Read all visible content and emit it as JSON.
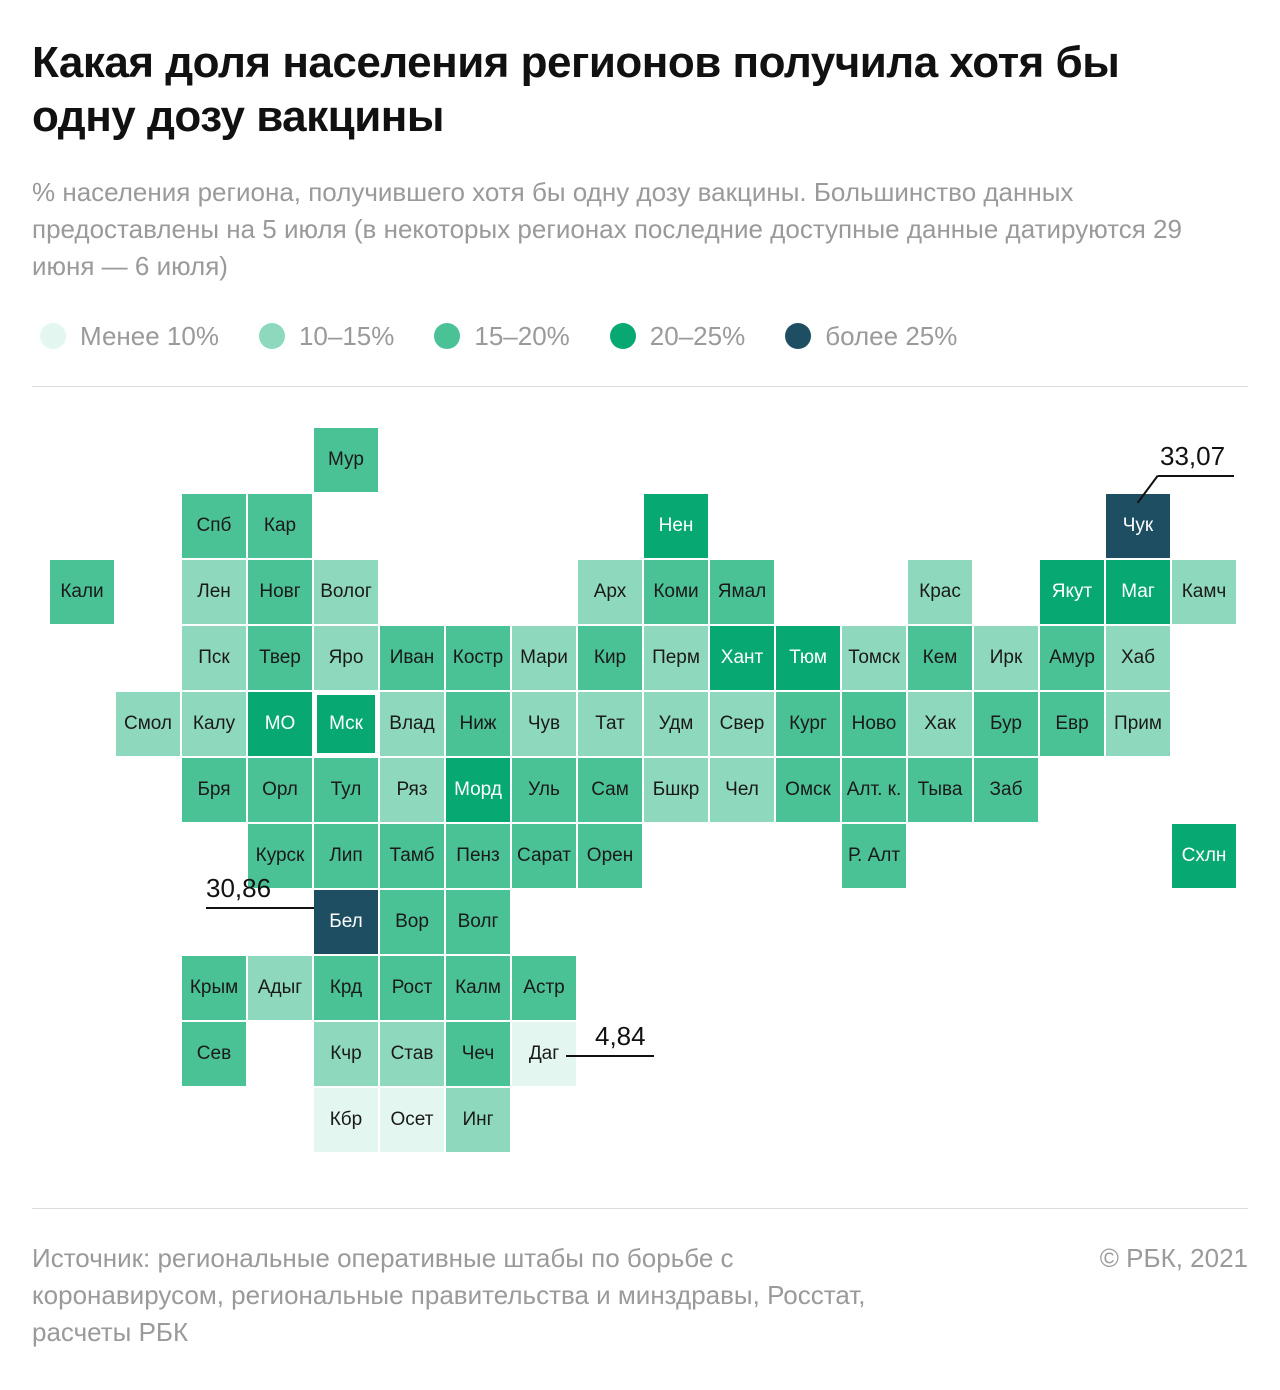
{
  "header": {
    "title": "Какая доля населения регионов получила хотя бы одну дозу вакцины",
    "subtitle": "% населения региона, получившего хотя бы одну дозу вакцины. Большинство данных предоставлены на 5 июля (в некоторых регионах последние доступные данные датируются 29 июня — 6 июля)"
  },
  "legend": [
    {
      "key": "lt10",
      "label": "Менее 10%",
      "color": "#e3f6ef"
    },
    {
      "key": "10_15",
      "label": "10–15%",
      "color": "#8ed8bd"
    },
    {
      "key": "15_20",
      "label": "15–20%",
      "color": "#4bc196"
    },
    {
      "key": "20_25",
      "label": "20–25%",
      "color": "#07a872"
    },
    {
      "key": "gt25",
      "label": "более 25%",
      "color": "#1d4e62"
    }
  ],
  "chart_data": {
    "type": "heatmap",
    "description_units": "% населения региона",
    "tiles": [
      {
        "label": "Мур",
        "row": 0,
        "col": 4,
        "bin": "15_20"
      },
      {
        "label": "Спб",
        "row": 1,
        "col": 2,
        "bin": "15_20"
      },
      {
        "label": "Кар",
        "row": 1,
        "col": 3,
        "bin": "15_20"
      },
      {
        "label": "Нен",
        "row": 1,
        "col": 9,
        "bin": "20_25"
      },
      {
        "label": "Чук",
        "row": 1,
        "col": 16,
        "bin": "gt25"
      },
      {
        "label": "Кали",
        "row": 2,
        "col": 0,
        "bin": "15_20"
      },
      {
        "label": "Лен",
        "row": 2,
        "col": 2,
        "bin": "10_15"
      },
      {
        "label": "Новг",
        "row": 2,
        "col": 3,
        "bin": "15_20"
      },
      {
        "label": "Волог",
        "row": 2,
        "col": 4,
        "bin": "10_15"
      },
      {
        "label": "Арх",
        "row": 2,
        "col": 8,
        "bin": "10_15"
      },
      {
        "label": "Коми",
        "row": 2,
        "col": 9,
        "bin": "15_20"
      },
      {
        "label": "Ямал",
        "row": 2,
        "col": 10,
        "bin": "15_20"
      },
      {
        "label": "Крас",
        "row": 2,
        "col": 13,
        "bin": "10_15"
      },
      {
        "label": "Якут",
        "row": 2,
        "col": 15,
        "bin": "20_25"
      },
      {
        "label": "Маг",
        "row": 2,
        "col": 16,
        "bin": "20_25"
      },
      {
        "label": "Камч",
        "row": 2,
        "col": 17,
        "bin": "10_15"
      },
      {
        "label": "Пск",
        "row": 3,
        "col": 2,
        "bin": "10_15"
      },
      {
        "label": "Твер",
        "row": 3,
        "col": 3,
        "bin": "15_20"
      },
      {
        "label": "Яро",
        "row": 3,
        "col": 4,
        "bin": "10_15"
      },
      {
        "label": "Иван",
        "row": 3,
        "col": 5,
        "bin": "15_20"
      },
      {
        "label": "Костр",
        "row": 3,
        "col": 6,
        "bin": "15_20"
      },
      {
        "label": "Мари",
        "row": 3,
        "col": 7,
        "bin": "10_15"
      },
      {
        "label": "Кир",
        "row": 3,
        "col": 8,
        "bin": "15_20"
      },
      {
        "label": "Перм",
        "row": 3,
        "col": 9,
        "bin": "10_15"
      },
      {
        "label": "Хант",
        "row": 3,
        "col": 10,
        "bin": "20_25"
      },
      {
        "label": "Тюм",
        "row": 3,
        "col": 11,
        "bin": "20_25"
      },
      {
        "label": "Томск",
        "row": 3,
        "col": 12,
        "bin": "10_15"
      },
      {
        "label": "Кем",
        "row": 3,
        "col": 13,
        "bin": "15_20"
      },
      {
        "label": "Ирк",
        "row": 3,
        "col": 14,
        "bin": "10_15"
      },
      {
        "label": "Амур",
        "row": 3,
        "col": 15,
        "bin": "15_20"
      },
      {
        "label": "Хаб",
        "row": 3,
        "col": 16,
        "bin": "10_15"
      },
      {
        "label": "Смол",
        "row": 4,
        "col": 1,
        "bin": "10_15"
      },
      {
        "label": "Калу",
        "row": 4,
        "col": 2,
        "bin": "10_15"
      },
      {
        "label": "МО",
        "row": 4,
        "col": 3,
        "bin": "20_25"
      },
      {
        "label": "Мск",
        "row": 4,
        "col": 4,
        "bin": "20_25",
        "outlined": true
      },
      {
        "label": "Влад",
        "row": 4,
        "col": 5,
        "bin": "10_15"
      },
      {
        "label": "Ниж",
        "row": 4,
        "col": 6,
        "bin": "15_20"
      },
      {
        "label": "Чув",
        "row": 4,
        "col": 7,
        "bin": "10_15"
      },
      {
        "label": "Тат",
        "row": 4,
        "col": 8,
        "bin": "10_15"
      },
      {
        "label": "Удм",
        "row": 4,
        "col": 9,
        "bin": "10_15"
      },
      {
        "label": "Свер",
        "row": 4,
        "col": 10,
        "bin": "10_15"
      },
      {
        "label": "Кург",
        "row": 4,
        "col": 11,
        "bin": "15_20"
      },
      {
        "label": "Ново",
        "row": 4,
        "col": 12,
        "bin": "15_20"
      },
      {
        "label": "Хак",
        "row": 4,
        "col": 13,
        "bin": "10_15"
      },
      {
        "label": "Бур",
        "row": 4,
        "col": 14,
        "bin": "15_20"
      },
      {
        "label": "Евр",
        "row": 4,
        "col": 15,
        "bin": "15_20"
      },
      {
        "label": "Прим",
        "row": 4,
        "col": 16,
        "bin": "10_15"
      },
      {
        "label": "Бря",
        "row": 5,
        "col": 2,
        "bin": "15_20"
      },
      {
        "label": "Орл",
        "row": 5,
        "col": 3,
        "bin": "15_20"
      },
      {
        "label": "Тул",
        "row": 5,
        "col": 4,
        "bin": "15_20"
      },
      {
        "label": "Ряз",
        "row": 5,
        "col": 5,
        "bin": "10_15"
      },
      {
        "label": "Морд",
        "row": 5,
        "col": 6,
        "bin": "20_25"
      },
      {
        "label": "Уль",
        "row": 5,
        "col": 7,
        "bin": "15_20"
      },
      {
        "label": "Сам",
        "row": 5,
        "col": 8,
        "bin": "15_20"
      },
      {
        "label": "Бшкр",
        "row": 5,
        "col": 9,
        "bin": "10_15"
      },
      {
        "label": "Чел",
        "row": 5,
        "col": 10,
        "bin": "10_15"
      },
      {
        "label": "Омск",
        "row": 5,
        "col": 11,
        "bin": "15_20"
      },
      {
        "label": "Алт. к.",
        "row": 5,
        "col": 12,
        "bin": "15_20"
      },
      {
        "label": "Тыва",
        "row": 5,
        "col": 13,
        "bin": "15_20"
      },
      {
        "label": "Заб",
        "row": 5,
        "col": 14,
        "bin": "15_20"
      },
      {
        "label": "Курск",
        "row": 6,
        "col": 3,
        "bin": "15_20"
      },
      {
        "label": "Лип",
        "row": 6,
        "col": 4,
        "bin": "15_20"
      },
      {
        "label": "Тамб",
        "row": 6,
        "col": 5,
        "bin": "15_20"
      },
      {
        "label": "Пенз",
        "row": 6,
        "col": 6,
        "bin": "15_20"
      },
      {
        "label": "Сарат",
        "row": 6,
        "col": 7,
        "bin": "15_20"
      },
      {
        "label": "Орен",
        "row": 6,
        "col": 8,
        "bin": "15_20"
      },
      {
        "label": "Р. Алт",
        "row": 6,
        "col": 12,
        "bin": "15_20"
      },
      {
        "label": "Схлн",
        "row": 6,
        "col": 17,
        "bin": "20_25"
      },
      {
        "label": "Бел",
        "row": 7,
        "col": 4,
        "bin": "gt25"
      },
      {
        "label": "Вор",
        "row": 7,
        "col": 5,
        "bin": "15_20"
      },
      {
        "label": "Волг",
        "row": 7,
        "col": 6,
        "bin": "15_20"
      },
      {
        "label": "Крым",
        "row": 8,
        "col": 2,
        "bin": "15_20"
      },
      {
        "label": "Адыг",
        "row": 8,
        "col": 3,
        "bin": "10_15"
      },
      {
        "label": "Крд",
        "row": 8,
        "col": 4,
        "bin": "15_20"
      },
      {
        "label": "Рост",
        "row": 8,
        "col": 5,
        "bin": "15_20"
      },
      {
        "label": "Калм",
        "row": 8,
        "col": 6,
        "bin": "15_20"
      },
      {
        "label": "Астр",
        "row": 8,
        "col": 7,
        "bin": "15_20"
      },
      {
        "label": "Сев",
        "row": 9,
        "col": 2,
        "bin": "15_20"
      },
      {
        "label": "Кчр",
        "row": 9,
        "col": 4,
        "bin": "10_15"
      },
      {
        "label": "Став",
        "row": 9,
        "col": 5,
        "bin": "10_15"
      },
      {
        "label": "Чеч",
        "row": 9,
        "col": 6,
        "bin": "15_20"
      },
      {
        "label": "Даг",
        "row": 9,
        "col": 7,
        "bin": "lt10"
      },
      {
        "label": "Кбр",
        "row": 10,
        "col": 4,
        "bin": "lt10"
      },
      {
        "label": "Осет",
        "row": 10,
        "col": 5,
        "bin": "lt10"
      },
      {
        "label": "Инг",
        "row": 10,
        "col": 6,
        "bin": "10_15"
      }
    ],
    "annotations": [
      {
        "region": "Чук",
        "value": "33,07",
        "side": "right-top"
      },
      {
        "region": "Бел",
        "value": "30,86",
        "side": "left"
      },
      {
        "region": "Даг",
        "value": "4,84",
        "side": "right"
      }
    ]
  },
  "footer": {
    "source": "Источник:  региональные оперативные штабы по борьбе с коронавирусом, региональные правительства и минздравы, Росстат, расчеты РБК",
    "copyright": "©  РБК, 2021"
  }
}
